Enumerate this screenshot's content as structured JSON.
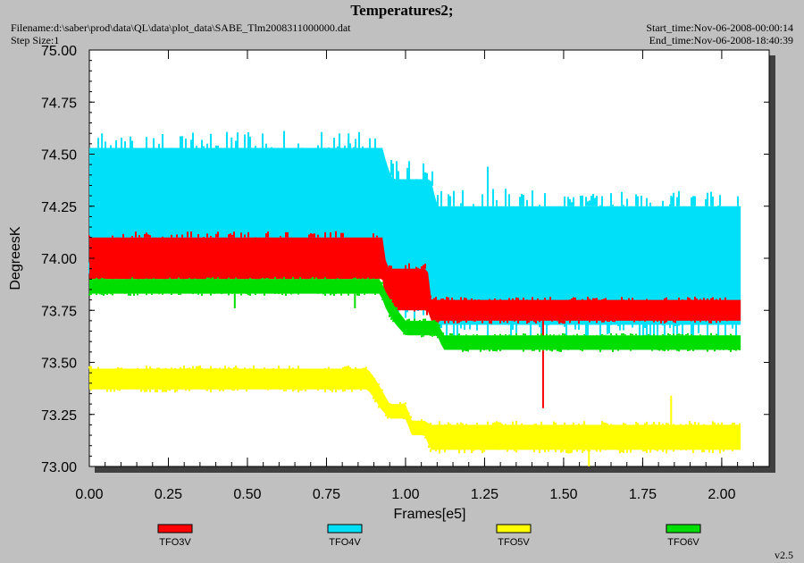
{
  "header": {
    "title": "Temperatures2;",
    "filename": "Filename:d:\\saber\\prod\\data\\QL\\data\\plot_data\\SABE_Tlm2008311000000.dat",
    "step_size": "Step Size:1",
    "start_time": "Start_time:Nov-06-2008-00:00:14",
    "end_time": "End_time:Nov-06-2008-18:40:39",
    "version": "v2.5"
  },
  "chart_data": {
    "type": "line",
    "title": "Temperatures2;",
    "xlabel": "Frames[e5]",
    "ylabel": "DegreesK",
    "xlim": [
      0,
      2.15
    ],
    "ylim": [
      73.0,
      75.0
    ],
    "x_ticks": [
      "0.00",
      "0.25",
      "0.50",
      "0.75",
      "1.00",
      "1.25",
      "1.50",
      "1.75",
      "2.00"
    ],
    "y_ticks": [
      "73.00",
      "73.25",
      "73.50",
      "73.75",
      "74.00",
      "74.25",
      "74.50",
      "74.75",
      "75.00"
    ],
    "grid": false,
    "legend_position": "bottom",
    "series": [
      {
        "name": "TFO3V",
        "color": "#ff0000",
        "x": [
          0.0,
          0.93,
          0.94,
          1.07,
          1.08,
          2.06
        ],
        "y_low": [
          73.9,
          73.9,
          73.75,
          73.75,
          73.7,
          73.7
        ],
        "y_high": [
          74.1,
          74.1,
          73.95,
          73.95,
          73.8,
          73.8
        ],
        "spikes": [
          [
            1.435,
            73.28
          ],
          [
            1.435,
            73.6
          ]
        ]
      },
      {
        "name": "TFO4V",
        "color": "#00e0f8",
        "x": [
          0.0,
          0.93,
          0.94,
          0.96,
          1.08,
          1.1,
          2.06
        ],
        "y_low": [
          73.98,
          73.98,
          73.9,
          73.78,
          73.78,
          73.68,
          73.68
        ],
        "y_high": [
          74.53,
          74.53,
          74.45,
          74.38,
          74.38,
          74.25,
          74.25
        ],
        "spikes": [
          [
            0.04,
            74.6
          ],
          [
            0.45,
            74.58
          ],
          [
            0.82,
            74.6
          ],
          [
            1.26,
            74.44
          ],
          [
            1.84,
            74.3
          ]
        ]
      },
      {
        "name": "TFO5V",
        "color": "#ffff00",
        "x": [
          0.0,
          0.88,
          0.9,
          0.92,
          0.95,
          1.0,
          1.02,
          1.06,
          1.08,
          2.06
        ],
        "y_low": [
          73.37,
          73.37,
          73.33,
          73.28,
          73.23,
          73.23,
          73.15,
          73.15,
          73.08,
          73.08
        ],
        "y_high": [
          73.47,
          73.47,
          73.43,
          73.38,
          73.3,
          73.3,
          73.22,
          73.22,
          73.2,
          73.2
        ],
        "spikes": [
          [
            1.58,
            73.0
          ],
          [
            1.84,
            73.34
          ]
        ]
      },
      {
        "name": "TFO6V",
        "color": "#00dd00",
        "x": [
          0.0,
          0.92,
          0.94,
          0.97,
          1.0,
          1.1,
          1.12,
          2.06
        ],
        "y_low": [
          73.83,
          73.83,
          73.75,
          73.68,
          73.63,
          73.63,
          73.56,
          73.56
        ],
        "y_high": [
          73.9,
          73.9,
          73.83,
          73.76,
          73.7,
          73.7,
          73.63,
          73.63
        ],
        "spikes": [
          [
            0.46,
            73.76
          ],
          [
            0.84,
            73.76
          ]
        ]
      }
    ]
  }
}
